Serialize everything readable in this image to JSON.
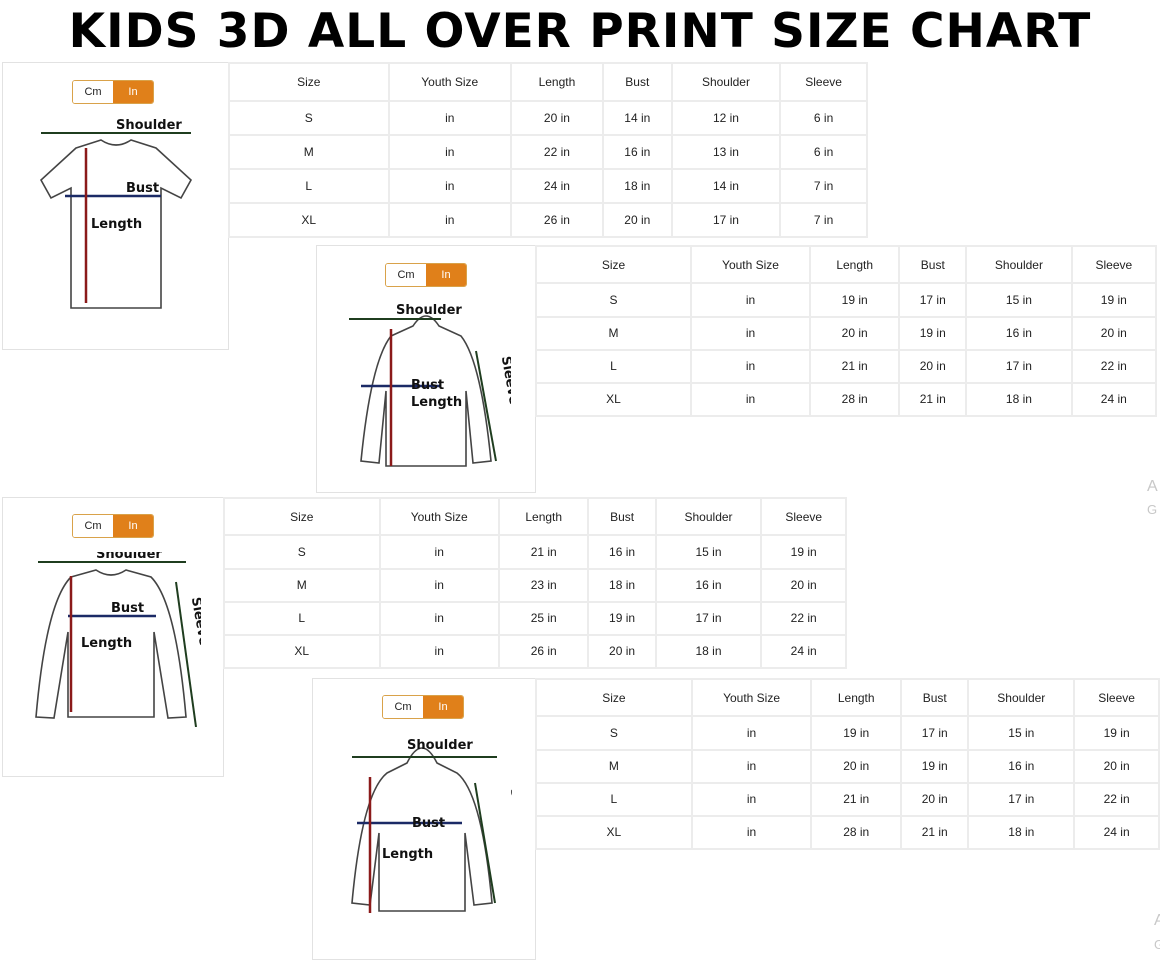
{
  "title": "KIDS 3D ALL OVER PRINT SIZE CHART",
  "toggle": {
    "cm": "Cm",
    "in": "In",
    "active": "In",
    "active_color": "#e0801a"
  },
  "watermark": {
    "line1": "A",
    "line2": "G"
  },
  "columns": [
    "Size",
    "Youth Size",
    "Length",
    "Bust",
    "Shoulder",
    "Sleeve"
  ],
  "panels": [
    {
      "garment": "t-shirt",
      "labels": {
        "shoulder": "Shoulder",
        "bust": "Bust",
        "length": "Length"
      },
      "rows": [
        [
          "S",
          "in",
          "20 in",
          "14 in",
          "12 in",
          "6 in"
        ],
        [
          "M",
          "in",
          "22 in",
          "16 in",
          "13 in",
          "6 in"
        ],
        [
          "L",
          "in",
          "24 in",
          "18 in",
          "14 in",
          "7 in"
        ],
        [
          "XL",
          "in",
          "26 in",
          "20 in",
          "17 in",
          "7 in"
        ]
      ]
    },
    {
      "garment": "zip-hoodie",
      "labels": {
        "shoulder": "Shoulder",
        "bust": "Bust",
        "length": "Length",
        "sleeve": "Sleeve"
      },
      "rows": [
        [
          "S",
          "in",
          "19 in",
          "17 in",
          "15 in",
          "19 in"
        ],
        [
          "M",
          "in",
          "20 in",
          "19 in",
          "16 in",
          "20 in"
        ],
        [
          "L",
          "in",
          "21 in",
          "20 in",
          "17 in",
          "22 in"
        ],
        [
          "XL",
          "in",
          "28 in",
          "21 in",
          "18 in",
          "24 in"
        ]
      ]
    },
    {
      "garment": "long-sleeve",
      "labels": {
        "shoulder": "Shoulder",
        "bust": "Bust",
        "length": "Length",
        "sleeve": "Sleeve"
      },
      "rows": [
        [
          "S",
          "in",
          "21 in",
          "16 in",
          "15 in",
          "19 in"
        ],
        [
          "M",
          "in",
          "23 in",
          "18 in",
          "16 in",
          "20 in"
        ],
        [
          "L",
          "in",
          "25 in",
          "19 in",
          "17 in",
          "22 in"
        ],
        [
          "XL",
          "in",
          "26 in",
          "20 in",
          "18 in",
          "24 in"
        ]
      ]
    },
    {
      "garment": "pullover-hoodie",
      "labels": {
        "shoulder": "Shoulder",
        "bust": "Bust",
        "length": "Length",
        "sleeve": "Sleeve"
      },
      "rows": [
        [
          "S",
          "in",
          "19 in",
          "17 in",
          "15 in",
          "19 in"
        ],
        [
          "M",
          "in",
          "20 in",
          "19 in",
          "16 in",
          "20 in"
        ],
        [
          "L",
          "in",
          "21 in",
          "20 in",
          "17 in",
          "22 in"
        ],
        [
          "XL",
          "in",
          "28 in",
          "21 in",
          "18 in",
          "24 in"
        ]
      ]
    }
  ]
}
